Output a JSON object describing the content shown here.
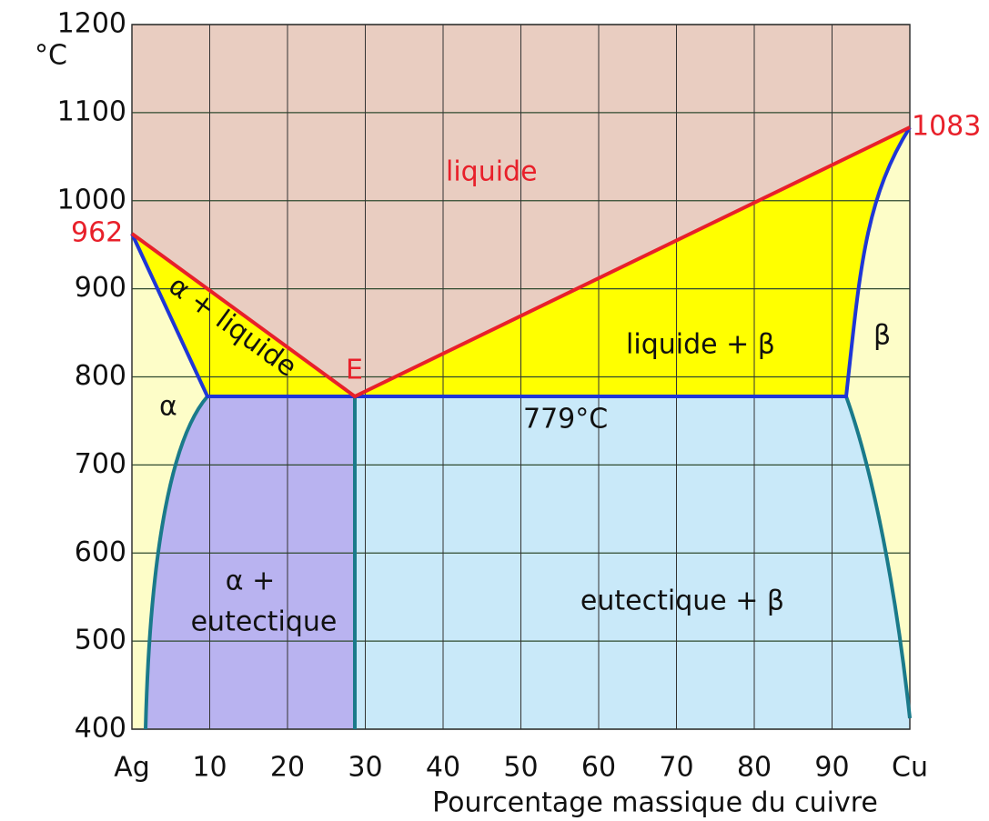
{
  "axes": {
    "y_unit": "°C",
    "x_label": "Pourcentage massique du cuivre",
    "xlim": [
      0,
      100
    ],
    "ylim": [
      400,
      1200
    ],
    "xticks": [
      {
        "value": 0,
        "label": "Ag"
      },
      10,
      20,
      30,
      40,
      50,
      60,
      70,
      80,
      90,
      {
        "value": 100,
        "label": "Cu"
      }
    ],
    "yticks": [
      400,
      500,
      600,
      700,
      800,
      900,
      1000,
      1100,
      1200
    ]
  },
  "points": {
    "ag_melting": "962",
    "cu_melting": "1083",
    "eutectic": "E",
    "eutectic_temperature": "779°C"
  },
  "regions": {
    "liquid": "liquide",
    "alpha_liquid": "α + liquide",
    "beta_liquid": "liquide + β",
    "beta": "β",
    "alpha": "α",
    "alpha_eutectic": [
      "α +",
      "eutectique"
    ],
    "eutectic_beta": "eutectique + β"
  }
}
